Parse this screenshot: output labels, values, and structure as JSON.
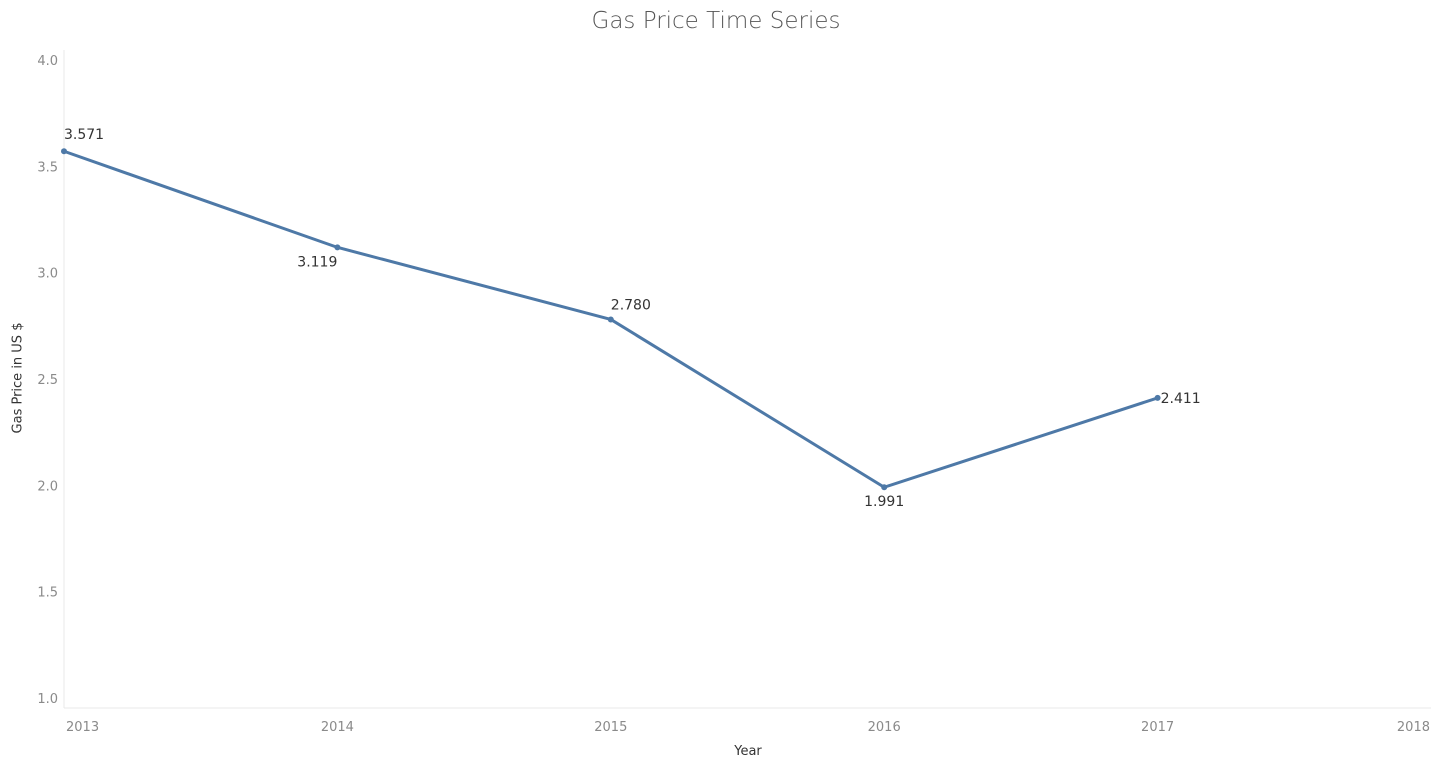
{
  "chart_data": {
    "type": "line",
    "title": "Gas Price Time Series",
    "xlabel": "Year",
    "ylabel": "Gas Price in US $",
    "x_ticks": [
      "2013",
      "2014",
      "2015",
      "2016",
      "2017",
      "2018"
    ],
    "y_ticks": [
      "1.0",
      "1.5",
      "2.0",
      "2.5",
      "3.0",
      "3.5",
      "4.0"
    ],
    "xlim": [
      2013,
      2018
    ],
    "ylim": [
      1.0,
      4.0
    ],
    "grid": false,
    "series": [
      {
        "color": "#4e79a7",
        "points": [
          {
            "x": 2013,
            "y": 3.571,
            "label": "3.571"
          },
          {
            "x": 2014,
            "y": 3.119,
            "label": "3.119"
          },
          {
            "x": 2015,
            "y": 2.78,
            "label": "2.780"
          },
          {
            "x": 2016,
            "y": 1.991,
            "label": "1.991"
          },
          {
            "x": 2017,
            "y": 2.411,
            "label": "2.411"
          }
        ]
      }
    ]
  }
}
